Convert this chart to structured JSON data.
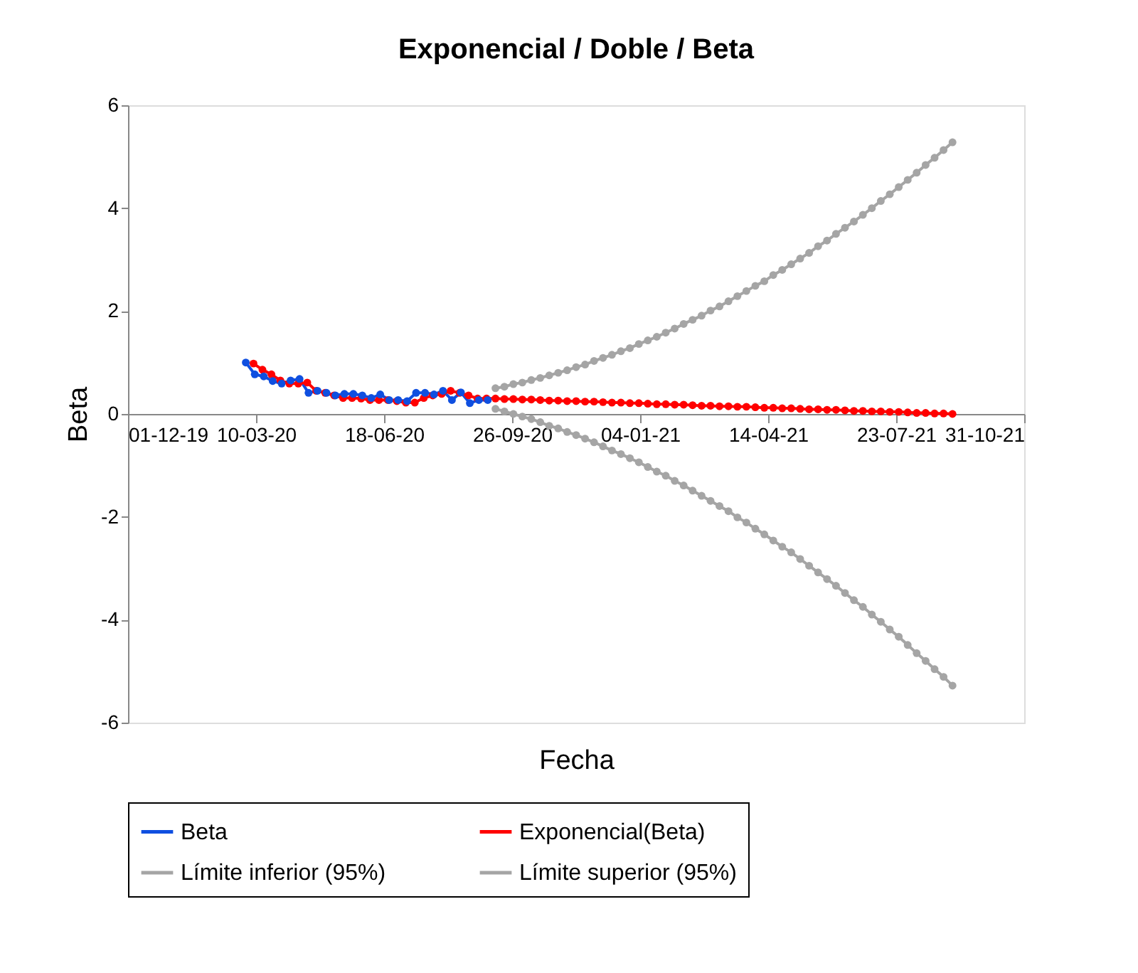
{
  "chart_data": {
    "type": "line",
    "title": "Exponencial / Doble / Beta",
    "xlabel": "Fecha",
    "ylabel": "Beta",
    "xlim": [
      "2019-12-01",
      "2021-10-31"
    ],
    "xticks": [
      {
        "value": "2019-12-01",
        "label": "01-12-19"
      },
      {
        "value": "2020-03-10",
        "label": "10-03-20"
      },
      {
        "value": "2020-06-18",
        "label": "18-06-20"
      },
      {
        "value": "2020-09-26",
        "label": "26-09-20"
      },
      {
        "value": "2021-01-04",
        "label": "04-01-21"
      },
      {
        "value": "2021-04-14",
        "label": "14-04-21"
      },
      {
        "value": "2021-07-23",
        "label": "23-07-21"
      },
      {
        "value": "2021-10-31",
        "label": "31-10-21"
      }
    ],
    "ylim": [
      -6,
      6
    ],
    "yticks": [
      -6,
      -4,
      -2,
      0,
      2,
      4,
      6
    ],
    "grid": false,
    "legend": "bottom",
    "marker": "circle",
    "line_style": "solid",
    "series": [
      {
        "name": "Beta",
        "color": "#0f4fe0",
        "x": [
          "2020-03-02",
          "2020-03-09",
          "2020-03-16",
          "2020-03-23",
          "2020-03-30",
          "2020-04-06",
          "2020-04-13",
          "2020-04-20",
          "2020-04-27",
          "2020-05-04",
          "2020-05-11",
          "2020-05-18",
          "2020-05-25",
          "2020-06-01",
          "2020-06-08",
          "2020-06-15",
          "2020-06-22",
          "2020-06-29",
          "2020-07-06",
          "2020-07-13",
          "2020-07-20",
          "2020-07-27",
          "2020-08-03",
          "2020-08-10",
          "2020-08-17",
          "2020-08-24",
          "2020-08-31",
          "2020-09-07"
        ],
        "values": [
          1.0,
          0.77,
          0.73,
          0.64,
          0.59,
          0.65,
          0.68,
          0.41,
          0.45,
          0.41,
          0.36,
          0.39,
          0.39,
          0.36,
          0.31,
          0.38,
          0.27,
          0.27,
          0.25,
          0.41,
          0.41,
          0.38,
          0.45,
          0.27,
          0.42,
          0.21,
          0.27,
          0.27
        ]
      },
      {
        "name": "Exponencial(Beta)",
        "color": "#ff0000",
        "x": [
          "2020-03-08",
          "2020-03-15",
          "2020-03-22",
          "2020-03-29",
          "2020-04-05",
          "2020-04-12",
          "2020-04-19",
          "2020-04-26",
          "2020-05-03",
          "2020-05-10",
          "2020-05-17",
          "2020-05-24",
          "2020-05-31",
          "2020-06-07",
          "2020-06-14",
          "2020-06-21",
          "2020-06-28",
          "2020-07-05",
          "2020-07-12",
          "2020-07-19",
          "2020-07-26",
          "2020-08-02",
          "2020-08-09",
          "2020-08-16",
          "2020-08-23",
          "2020-08-30",
          "2020-09-06",
          "2020-09-13",
          "2020-09-20",
          "2020-09-27",
          "2020-10-04",
          "2020-10-11",
          "2020-10-18",
          "2020-10-25",
          "2020-11-01",
          "2020-11-08",
          "2020-11-15",
          "2020-11-22",
          "2020-11-29",
          "2020-12-06",
          "2020-12-13",
          "2020-12-20",
          "2020-12-27",
          "2021-01-03",
          "2021-01-10",
          "2021-01-17",
          "2021-01-24",
          "2021-01-31",
          "2021-02-07",
          "2021-02-14",
          "2021-02-21",
          "2021-02-28",
          "2021-03-07",
          "2021-03-14",
          "2021-03-21",
          "2021-03-28",
          "2021-04-04",
          "2021-04-11",
          "2021-04-18",
          "2021-04-25",
          "2021-05-02",
          "2021-05-09",
          "2021-05-16",
          "2021-05-23",
          "2021-05-30",
          "2021-06-06",
          "2021-06-13",
          "2021-06-20",
          "2021-06-27",
          "2021-07-04",
          "2021-07-11",
          "2021-07-18",
          "2021-07-25",
          "2021-08-01",
          "2021-08-08",
          "2021-08-15",
          "2021-08-22",
          "2021-08-29",
          "2021-09-05"
        ],
        "values": [
          0.98,
          0.86,
          0.77,
          0.65,
          0.59,
          0.59,
          0.61,
          0.45,
          0.41,
          0.36,
          0.31,
          0.31,
          0.3,
          0.27,
          0.27,
          0.27,
          0.25,
          0.22,
          0.22,
          0.31,
          0.36,
          0.39,
          0.45,
          0.41,
          0.36,
          0.3,
          0.3,
          0.3,
          0.29,
          0.29,
          0.28,
          0.28,
          0.27,
          0.26,
          0.26,
          0.25,
          0.25,
          0.24,
          0.24,
          0.23,
          0.22,
          0.22,
          0.21,
          0.21,
          0.2,
          0.19,
          0.19,
          0.18,
          0.18,
          0.17,
          0.16,
          0.16,
          0.15,
          0.15,
          0.14,
          0.14,
          0.13,
          0.12,
          0.12,
          0.11,
          0.11,
          0.1,
          0.09,
          0.09,
          0.08,
          0.08,
          0.07,
          0.06,
          0.06,
          0.05,
          0.05,
          0.04,
          0.04,
          0.03,
          0.02,
          0.02,
          0.01,
          0.01,
          0.0
        ]
      },
      {
        "name": "Límite inferior (95%)",
        "color": "#a5a5a5",
        "x": [
          "2020-09-13",
          "2020-09-20",
          "2020-09-27",
          "2020-10-04",
          "2020-10-11",
          "2020-10-18",
          "2020-10-25",
          "2020-11-01",
          "2020-11-08",
          "2020-11-15",
          "2020-11-22",
          "2020-11-29",
          "2020-12-06",
          "2020-12-13",
          "2020-12-20",
          "2020-12-27",
          "2021-01-03",
          "2021-01-10",
          "2021-01-17",
          "2021-01-24",
          "2021-01-31",
          "2021-02-07",
          "2021-02-14",
          "2021-02-21",
          "2021-02-28",
          "2021-03-07",
          "2021-03-14",
          "2021-03-21",
          "2021-03-28",
          "2021-04-04",
          "2021-04-11",
          "2021-04-18",
          "2021-04-25",
          "2021-05-02",
          "2021-05-09",
          "2021-05-16",
          "2021-05-23",
          "2021-05-30",
          "2021-06-06",
          "2021-06-13",
          "2021-06-20",
          "2021-06-27",
          "2021-07-04",
          "2021-07-11",
          "2021-07-18",
          "2021-07-25",
          "2021-08-01",
          "2021-08-08",
          "2021-08-15",
          "2021-08-22",
          "2021-08-29",
          "2021-09-05"
        ],
        "values": [
          0.1,
          0.05,
          0.0,
          -0.05,
          -0.1,
          -0.16,
          -0.23,
          -0.28,
          -0.35,
          -0.41,
          -0.48,
          -0.55,
          -0.63,
          -0.71,
          -0.78,
          -0.86,
          -0.94,
          -1.03,
          -1.12,
          -1.2,
          -1.3,
          -1.39,
          -1.49,
          -1.59,
          -1.69,
          -1.79,
          -1.89,
          -2.01,
          -2.11,
          -2.23,
          -2.34,
          -2.46,
          -2.58,
          -2.69,
          -2.82,
          -2.95,
          -3.08,
          -3.21,
          -3.34,
          -3.48,
          -3.62,
          -3.75,
          -3.9,
          -4.04,
          -4.19,
          -4.33,
          -4.49,
          -4.65,
          -4.8,
          -4.96,
          -5.11,
          -5.28
        ]
      },
      {
        "name": "Límite superior (95%)",
        "color": "#a5a5a5",
        "x": [
          "2020-09-13",
          "2020-09-20",
          "2020-09-27",
          "2020-10-04",
          "2020-10-11",
          "2020-10-18",
          "2020-10-25",
          "2020-11-01",
          "2020-11-08",
          "2020-11-15",
          "2020-11-22",
          "2020-11-29",
          "2020-12-06",
          "2020-12-13",
          "2020-12-20",
          "2020-12-27",
          "2021-01-03",
          "2021-01-10",
          "2021-01-17",
          "2021-01-24",
          "2021-01-31",
          "2021-02-07",
          "2021-02-14",
          "2021-02-21",
          "2021-02-28",
          "2021-03-07",
          "2021-03-14",
          "2021-03-21",
          "2021-03-28",
          "2021-04-04",
          "2021-04-11",
          "2021-04-18",
          "2021-04-25",
          "2021-05-02",
          "2021-05-09",
          "2021-05-16",
          "2021-05-23",
          "2021-05-30",
          "2021-06-06",
          "2021-06-13",
          "2021-06-20",
          "2021-06-27",
          "2021-07-04",
          "2021-07-11",
          "2021-07-18",
          "2021-07-25",
          "2021-08-01",
          "2021-08-08",
          "2021-08-15",
          "2021-08-22",
          "2021-08-29",
          "2021-09-05"
        ],
        "values": [
          0.5,
          0.53,
          0.58,
          0.61,
          0.66,
          0.7,
          0.75,
          0.8,
          0.85,
          0.91,
          0.96,
          1.03,
          1.09,
          1.15,
          1.22,
          1.28,
          1.36,
          1.43,
          1.5,
          1.58,
          1.66,
          1.75,
          1.83,
          1.91,
          2.01,
          2.09,
          2.19,
          2.29,
          2.39,
          2.49,
          2.58,
          2.7,
          2.8,
          2.91,
          3.02,
          3.13,
          3.26,
          3.37,
          3.5,
          3.62,
          3.74,
          3.87,
          4.0,
          4.14,
          4.27,
          4.41,
          4.55,
          4.69,
          4.84,
          4.98,
          5.13,
          5.28
        ]
      }
    ]
  }
}
